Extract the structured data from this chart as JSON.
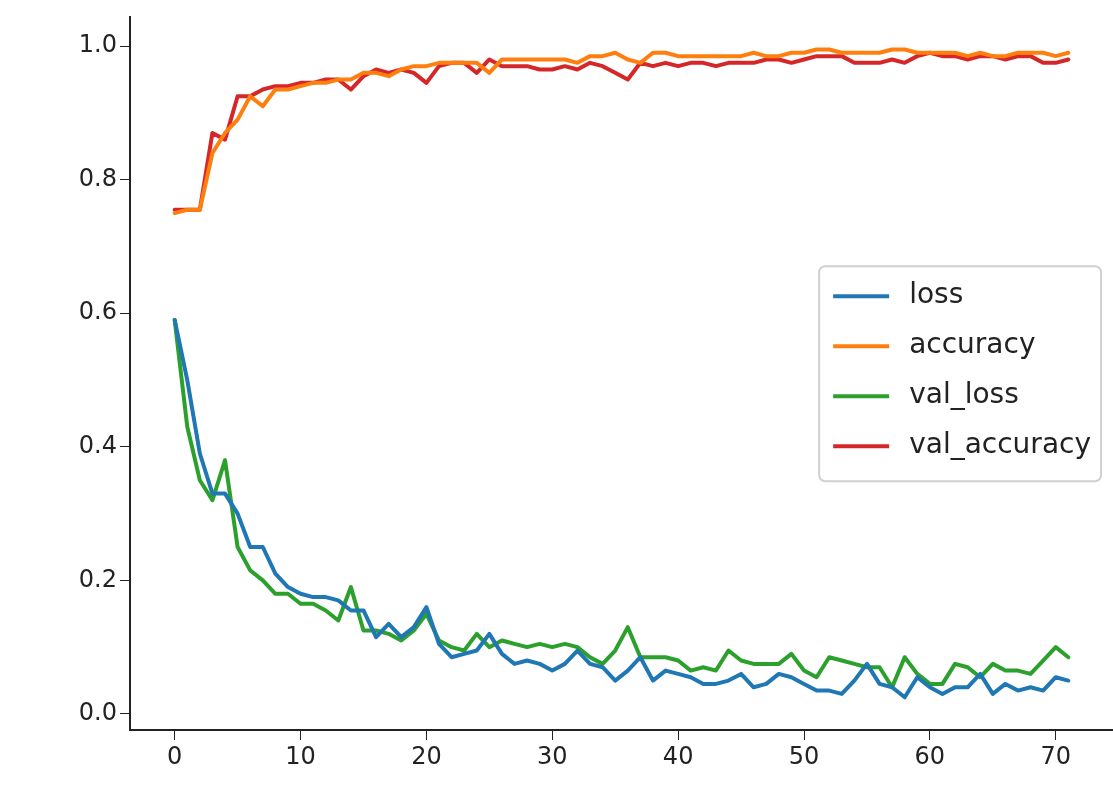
{
  "chart_data": {
    "type": "line",
    "x": [
      0,
      1,
      2,
      3,
      4,
      5,
      6,
      7,
      8,
      9,
      10,
      11,
      12,
      13,
      14,
      15,
      16,
      17,
      18,
      19,
      20,
      21,
      22,
      23,
      24,
      25,
      26,
      27,
      28,
      29,
      30,
      31,
      32,
      33,
      34,
      35,
      36,
      37,
      38,
      39,
      40,
      41,
      42,
      43,
      44,
      45,
      46,
      47,
      48,
      49,
      50,
      51,
      52,
      53,
      54,
      55,
      56,
      57,
      58,
      59,
      60,
      61,
      62,
      63,
      64,
      65,
      66,
      67,
      68,
      69,
      70,
      71
    ],
    "series": [
      {
        "name": "loss",
        "color": "#1f77b4",
        "values": [
          0.59,
          0.5,
          0.39,
          0.33,
          0.33,
          0.3,
          0.25,
          0.25,
          0.21,
          0.19,
          0.18,
          0.175,
          0.175,
          0.17,
          0.155,
          0.155,
          0.115,
          0.135,
          0.115,
          0.13,
          0.16,
          0.105,
          0.085,
          0.09,
          0.095,
          0.12,
          0.09,
          0.075,
          0.08,
          0.075,
          0.065,
          0.075,
          0.095,
          0.075,
          0.07,
          0.05,
          0.065,
          0.085,
          0.05,
          0.065,
          0.06,
          0.055,
          0.045,
          0.045,
          0.05,
          0.06,
          0.04,
          0.045,
          0.06,
          0.055,
          0.045,
          0.035,
          0.035,
          0.03,
          0.05,
          0.075,
          0.045,
          0.04,
          0.025,
          0.055,
          0.04,
          0.03,
          0.04,
          0.04,
          0.06,
          0.03,
          0.045,
          0.035,
          0.04,
          0.035,
          0.055,
          0.05
        ]
      },
      {
        "name": "accuracy",
        "color": "#ff7f0e",
        "values": [
          0.75,
          0.755,
          0.755,
          0.84,
          0.87,
          0.89,
          0.925,
          0.91,
          0.935,
          0.935,
          0.94,
          0.945,
          0.945,
          0.95,
          0.95,
          0.96,
          0.96,
          0.955,
          0.965,
          0.97,
          0.97,
          0.975,
          0.975,
          0.975,
          0.975,
          0.96,
          0.98,
          0.98,
          0.98,
          0.98,
          0.98,
          0.98,
          0.975,
          0.985,
          0.985,
          0.99,
          0.98,
          0.975,
          0.99,
          0.99,
          0.985,
          0.985,
          0.985,
          0.985,
          0.985,
          0.985,
          0.99,
          0.985,
          0.985,
          0.99,
          0.99,
          0.995,
          0.995,
          0.99,
          0.99,
          0.99,
          0.99,
          0.995,
          0.995,
          0.99,
          0.99,
          0.99,
          0.99,
          0.985,
          0.99,
          0.985,
          0.985,
          0.99,
          0.99,
          0.99,
          0.985,
          0.99
        ]
      },
      {
        "name": "val_loss",
        "color": "#2ca02c",
        "values": [
          0.59,
          0.43,
          0.35,
          0.32,
          0.38,
          0.25,
          0.215,
          0.2,
          0.18,
          0.18,
          0.165,
          0.165,
          0.155,
          0.14,
          0.19,
          0.125,
          0.125,
          0.12,
          0.11,
          0.125,
          0.15,
          0.11,
          0.1,
          0.095,
          0.12,
          0.1,
          0.11,
          0.105,
          0.1,
          0.105,
          0.1,
          0.105,
          0.1,
          0.085,
          0.075,
          0.095,
          0.13,
          0.085,
          0.085,
          0.085,
          0.08,
          0.065,
          0.07,
          0.065,
          0.095,
          0.08,
          0.075,
          0.075,
          0.075,
          0.09,
          0.065,
          0.055,
          0.085,
          0.08,
          0.075,
          0.07,
          0.07,
          0.04,
          0.085,
          0.06,
          0.045,
          0.045,
          0.075,
          0.07,
          0.055,
          0.075,
          0.065,
          0.065,
          0.06,
          0.08,
          0.1,
          0.085
        ]
      },
      {
        "name": "val_accuracy",
        "color": "#d62728",
        "values": [
          0.755,
          0.755,
          0.755,
          0.87,
          0.86,
          0.925,
          0.925,
          0.935,
          0.94,
          0.94,
          0.945,
          0.945,
          0.95,
          0.95,
          0.935,
          0.955,
          0.965,
          0.96,
          0.965,
          0.96,
          0.945,
          0.97,
          0.975,
          0.975,
          0.96,
          0.98,
          0.97,
          0.97,
          0.97,
          0.965,
          0.965,
          0.97,
          0.965,
          0.975,
          0.97,
          0.96,
          0.95,
          0.975,
          0.97,
          0.975,
          0.97,
          0.975,
          0.975,
          0.97,
          0.975,
          0.975,
          0.975,
          0.98,
          0.98,
          0.975,
          0.98,
          0.985,
          0.985,
          0.985,
          0.975,
          0.975,
          0.975,
          0.98,
          0.975,
          0.985,
          0.99,
          0.985,
          0.985,
          0.98,
          0.985,
          0.985,
          0.98,
          0.985,
          0.985,
          0.975,
          0.975,
          0.98
        ]
      }
    ],
    "xlim": [
      -3.55,
      74.55
    ],
    "xticks": [
      0,
      10,
      20,
      30,
      40,
      50,
      60,
      70
    ],
    "ylim": [
      -0.024,
      1.043
    ],
    "yticks": [
      {
        "value": 0,
        "label": "0.0"
      },
      {
        "value": 0.2,
        "label": "0.2"
      },
      {
        "value": 0.4,
        "label": "0.4"
      },
      {
        "value": 0.6,
        "label": "0.6"
      },
      {
        "value": 0.8,
        "label": "0.8"
      },
      {
        "value": 1,
        "label": "1.0"
      }
    ],
    "grid": false,
    "legend": "center right",
    "marker": "none",
    "line_style": "solid"
  }
}
